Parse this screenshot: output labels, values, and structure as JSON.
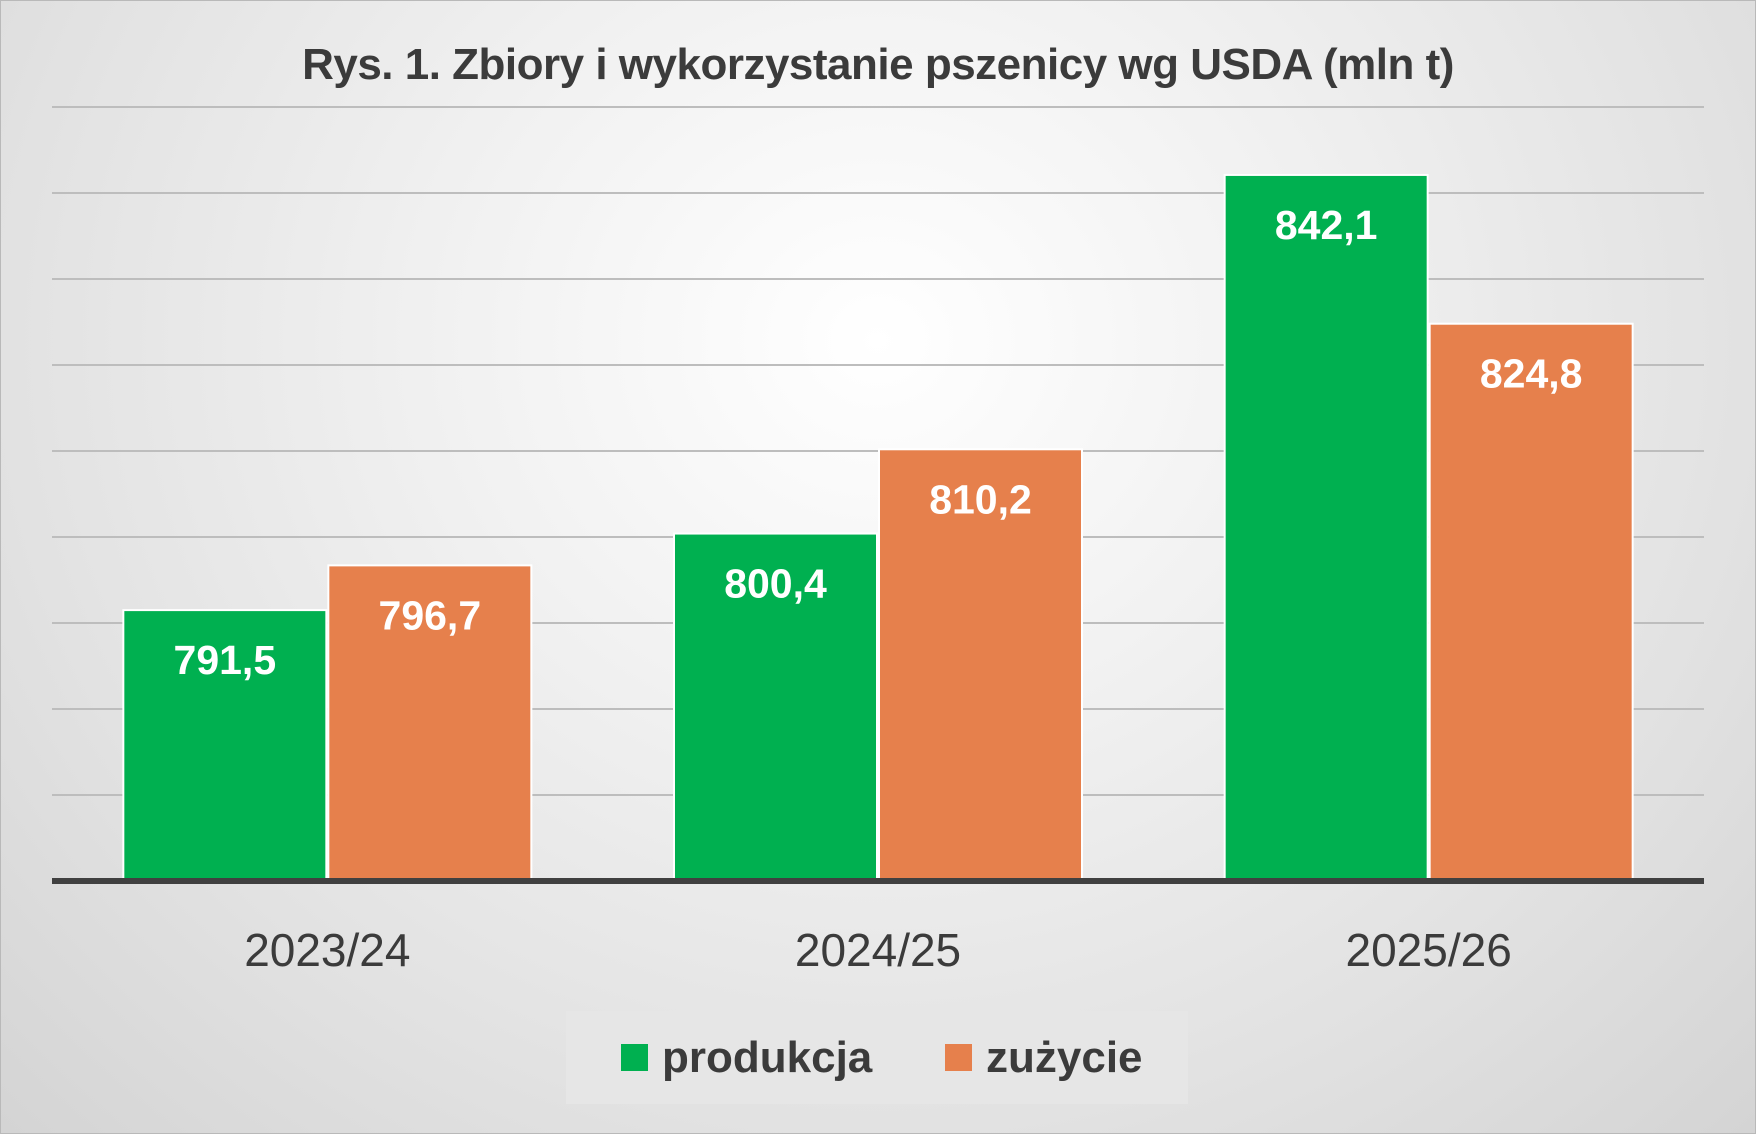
{
  "chart_data": {
    "type": "bar",
    "title": "Rys. 1. Zbiory i wykorzystanie pszenicy wg USDA (mln t)",
    "categories": [
      "2023/24",
      "2024/25",
      "2025/26"
    ],
    "series": [
      {
        "name": "produkcja",
        "values": [
          791.5,
          800.4,
          842.1
        ],
        "labels": [
          "791,5",
          "800,4",
          "842,1"
        ],
        "color": "#00b050"
      },
      {
        "name": "zużycie",
        "values": [
          796.7,
          810.2,
          824.8
        ],
        "labels": [
          "796,7",
          "810,2",
          "824,8"
        ],
        "color": "#e6804c"
      }
    ],
    "ylim": [
      760,
      850
    ],
    "grid": true,
    "legend_position": "bottom",
    "xlabel": "",
    "ylabel": ""
  }
}
